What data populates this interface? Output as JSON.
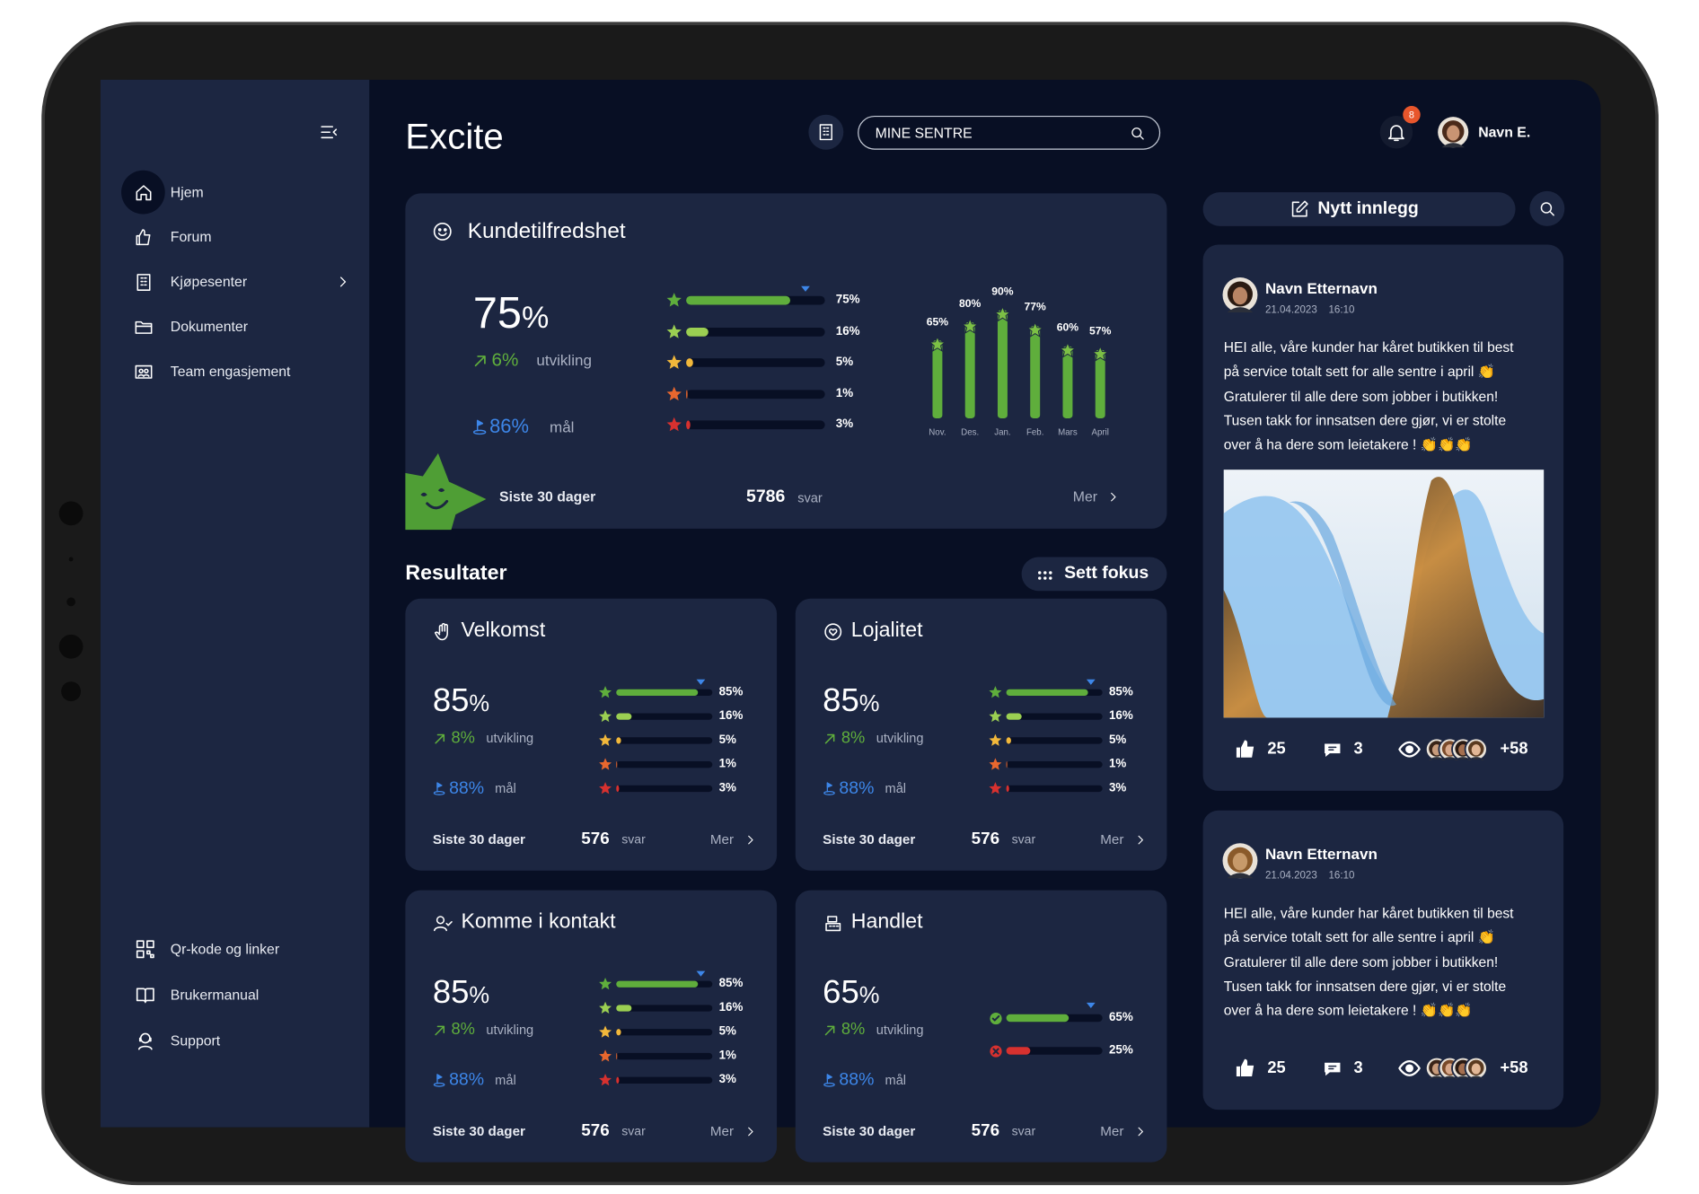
{
  "sidebar": {
    "nav": [
      "Hjem",
      "Forum",
      "Kjøpesenter",
      "Dokumenter",
      "Team engasjement"
    ],
    "bottom_nav": [
      "Qr-kode og linker",
      "Brukermanual",
      "Support"
    ]
  },
  "header": {
    "title": "Excite",
    "search_placeholder": "MINE SENTRE",
    "notification_count": "8",
    "user_name": "Navn E."
  },
  "satisfaction": {
    "title": "Kundetilfredshet",
    "score": "75",
    "score_unit": "%",
    "trend": "6%",
    "trend_label": "utvikling",
    "goal": {
      "value": 86,
      "label": "86%"
    },
    "goal_label": "mål",
    "ratings": [
      {
        "value": 75,
        "label": "75%"
      },
      {
        "value": 16,
        "label": "16%"
      },
      {
        "value": 5,
        "label": "5%"
      },
      {
        "value": 1,
        "label": "1%"
      },
      {
        "value": 3,
        "label": "3%"
      }
    ],
    "monthly": {
      "type": "bar",
      "categories": [
        "Nov.",
        "Des.",
        "Jan.",
        "Feb.",
        "Mars",
        "April"
      ],
      "values": [
        65,
        80,
        90,
        77,
        60,
        57
      ],
      "value_labels": [
        "65%",
        "80%",
        "90%",
        "77%",
        "60%",
        "57%"
      ]
    },
    "period": "Siste 30 dager",
    "responses": "5786",
    "responses_label": "svar",
    "more": "Mer"
  },
  "results": {
    "title": "Resultater",
    "focus_button": "Sett fokus",
    "cards": [
      {
        "title": "Velkomst",
        "score": "85",
        "score_unit": "%",
        "trend": "8%",
        "trend_label": "utvikling",
        "goal": {
          "value": 88,
          "label": "88%"
        },
        "goal_label": "mål",
        "ratings": [
          {
            "value": 85,
            "label": "85%"
          },
          {
            "value": 16,
            "label": "16%"
          },
          {
            "value": 5,
            "label": "5%"
          },
          {
            "value": 1,
            "label": "1%"
          },
          {
            "value": 3,
            "label": "3%"
          }
        ],
        "period": "Siste 30 dager",
        "responses": "576",
        "responses_label": "svar",
        "more": "Mer"
      },
      {
        "title": "Lojalitet",
        "score": "85",
        "score_unit": "%",
        "trend": "8%",
        "trend_label": "utvikling",
        "goal": {
          "value": 88,
          "label": "88%"
        },
        "goal_label": "mål",
        "ratings": [
          {
            "value": 85,
            "label": "85%"
          },
          {
            "value": 16,
            "label": "16%"
          },
          {
            "value": 5,
            "label": "5%"
          },
          {
            "value": 1,
            "label": "1%"
          },
          {
            "value": 3,
            "label": "3%"
          }
        ],
        "period": "Siste 30 dager",
        "responses": "576",
        "responses_label": "svar",
        "more": "Mer"
      },
      {
        "title": "Komme i kontakt",
        "score": "85",
        "score_unit": "%",
        "trend": "8%",
        "trend_label": "utvikling",
        "goal": {
          "value": 88,
          "label": "88%"
        },
        "goal_label": "mål",
        "ratings": [
          {
            "value": 85,
            "label": "85%"
          },
          {
            "value": 16,
            "label": "16%"
          },
          {
            "value": 5,
            "label": "5%"
          },
          {
            "value": 1,
            "label": "1%"
          },
          {
            "value": 3,
            "label": "3%"
          }
        ],
        "period": "Siste 30 dager",
        "responses": "576",
        "responses_label": "svar",
        "more": "Mer"
      },
      {
        "title": "Handlet",
        "score": "65",
        "score_unit": "%",
        "trend": "8%",
        "trend_label": "utvikling",
        "goal": {
          "value": 88,
          "label": "88%"
        },
        "goal_label": "mål",
        "ratings": [
          {
            "value": 65,
            "label": "65%"
          },
          {
            "value": 25,
            "label": "25%"
          }
        ],
        "period": "Siste 30 dager",
        "responses": "576",
        "responses_label": "svar",
        "more": "Mer"
      }
    ]
  },
  "feed": {
    "new_post_button": "Nytt innlegg",
    "posts": [
      {
        "author": "Navn Etternavn",
        "date": "21.04.2023",
        "time": "16:10",
        "lines": [
          "HEI alle, våre kunder har kåret butikken til best",
          "på service totalt sett for alle sentre i april 👏",
          "Gratulerer til alle dere som jobber i butikken!",
          "Tusen takk for innsatsen dere gjør, vi er stolte",
          "over å ha dere som leietakere ! 👏👏👏"
        ],
        "image": true,
        "likes": "25",
        "comments": "3",
        "viewers_more": "+58"
      },
      {
        "author": "Navn Etternavn",
        "date": "21.04.2023",
        "time": "16:10",
        "lines": [
          "HEI alle, våre kunder har kåret butikken til best",
          "på service totalt sett for alle sentre i april 👏",
          "Gratulerer til alle dere som jobber i butikken!",
          "Tusen takk for innsatsen dere gjør, vi er stolte",
          "over å ha dere som leietakere ! 👏👏👏"
        ],
        "image": false,
        "likes": "25",
        "comments": "3",
        "viewers_more": "+58"
      }
    ]
  }
}
